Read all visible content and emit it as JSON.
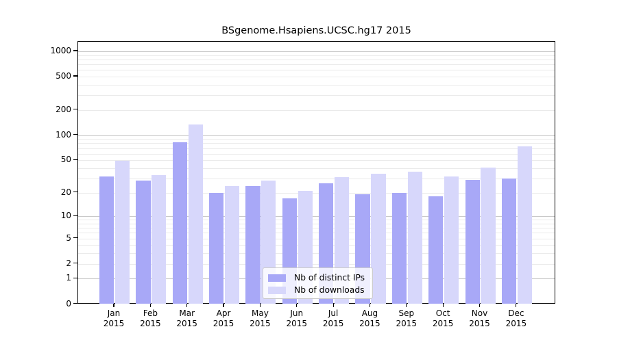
{
  "chart_data": {
    "type": "bar",
    "title": "BSgenome.Hsapiens.UCSC.hg17 2015",
    "categories": [
      "Jan",
      "Feb",
      "Mar",
      "Apr",
      "May",
      "Jun",
      "Jul",
      "Aug",
      "Sep",
      "Oct",
      "Nov",
      "Dec"
    ],
    "category_year": "2015",
    "series": [
      {
        "name": "Nb of distinct IPs",
        "color": "#a8a8f7",
        "values": [
          32,
          28,
          83,
          20,
          24,
          17,
          26,
          19,
          20,
          18,
          29,
          30
        ]
      },
      {
        "name": "Nb of downloads",
        "color": "#d7d7fb",
        "values": [
          49,
          33,
          135,
          24,
          28,
          21,
          31,
          34,
          36,
          32,
          41,
          73
        ]
      }
    ],
    "xlabel": "",
    "ylabel": "",
    "y_scale": "log1p",
    "y_ticks": [
      0,
      1,
      2,
      5,
      10,
      20,
      50,
      100,
      200,
      500,
      1000
    ],
    "ylim": [
      0,
      1300
    ],
    "grid": "on",
    "major_grid_at": [
      1,
      10,
      100,
      1000
    ],
    "legend_position": "bottom-center",
    "colors": {
      "major_grid": "#c9c9c9",
      "minor_grid": "#eaeaea",
      "axis": "#000000",
      "background": "#ffffff"
    }
  }
}
